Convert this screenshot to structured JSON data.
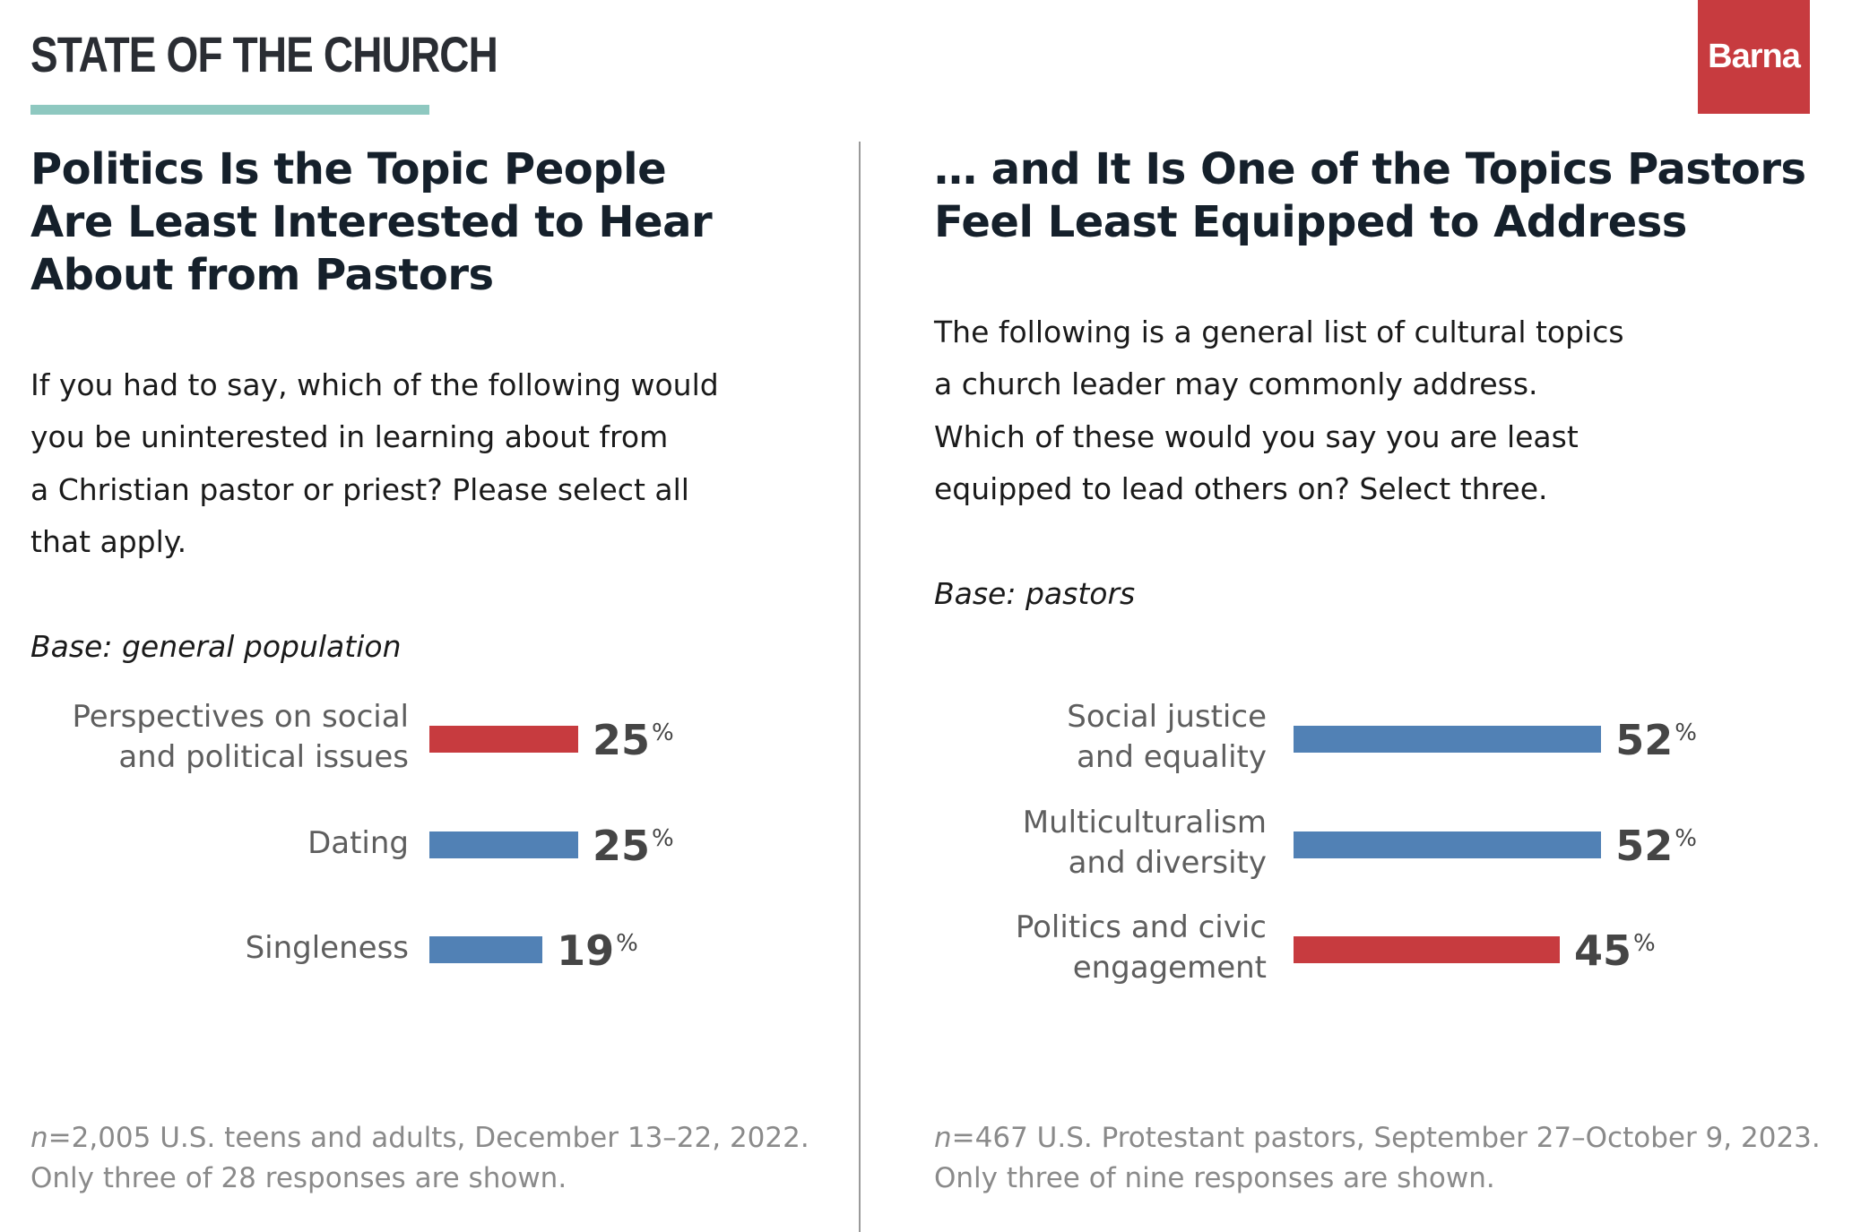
{
  "header": {
    "brand": "STATE OF THE CHURCH",
    "logo": "Barna",
    "accent_rule_color": "#8ec8c0",
    "logo_color": "#c73b3f"
  },
  "colors": {
    "highlight": "#c73b3f",
    "default": "#5181b5"
  },
  "chart_data": [
    {
      "type": "bar",
      "orientation": "horizontal",
      "title": "Politics Is the Topic People\nAre Least Interested to Hear\nAbout from Pastors",
      "question": "If you had to say, which of the following would\nyou be uninterested in learning about from\na Christian pastor or priest? Please select all\nthat apply.",
      "base": "Base: general population",
      "categories": [
        "Perspectives on social\nand political issues",
        "Dating",
        "Singleness"
      ],
      "values": [
        25,
        25,
        19
      ],
      "value_labels": [
        "25",
        "25",
        "19"
      ],
      "unit": "%",
      "highlight": [
        true,
        false,
        false
      ],
      "note_n": "n",
      "note": "=2,005 U.S. teens and adults, December 13–22, 2022.\nOnly three of 28 responses are shown."
    },
    {
      "type": "bar",
      "orientation": "horizontal",
      "title": "… and It Is One of the Topics Pastors\nFeel Least Equipped to Address",
      "question": "The following is a general list of cultural topics\na church leader may commonly address.\nWhich of these would you say you are least\nequipped to lead others on? Select three.",
      "base": "Base: pastors",
      "categories": [
        "Social justice\nand equality",
        "Multiculturalism\nand diversity",
        "Politics and civic\nengagement"
      ],
      "values": [
        52,
        52,
        45
      ],
      "value_labels": [
        "52",
        "52",
        "45"
      ],
      "unit": "%",
      "highlight": [
        false,
        false,
        true
      ],
      "note_n": "n",
      "note": "=467 U.S. Protestant pastors, September 27–October 9, 2023.\nOnly three of nine responses are shown."
    }
  ]
}
